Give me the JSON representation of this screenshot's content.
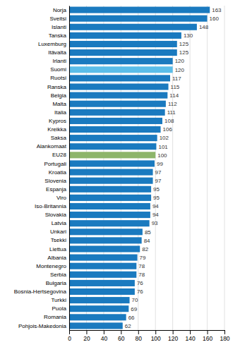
{
  "chart_data": {
    "type": "bar",
    "orientation": "horizontal",
    "categories": [
      "Norja",
      "Sveitsi",
      "Islanti",
      "Tanska",
      "Luxemburg",
      "Itävalta",
      "Irlanti",
      "Suomi",
      "Ruotsi",
      "Ranska",
      "Belgia",
      "Malta",
      "Italia",
      "Kypros",
      "Kreikka",
      "Saksa",
      "Alankomaat",
      "EU28",
      "Portugali",
      "Kroatia",
      "Slovenia",
      "Espanja",
      "Viro",
      "Iso-Britannia",
      "Slovakia",
      "Latvia",
      "Unkari",
      "Tsekki",
      "Liettua",
      "Albania",
      "Montenegro",
      "Serbia",
      "Bulgaria",
      "Bosnia-Hertsegovina",
      "Turkki",
      "Puola",
      "Romania",
      "Pohjois-Makedonia"
    ],
    "values": [
      163,
      160,
      148,
      130,
      125,
      125,
      120,
      120,
      117,
      115,
      114,
      112,
      111,
      108,
      106,
      102,
      101,
      100,
      99,
      97,
      97,
      95,
      95,
      94,
      94,
      93,
      85,
      84,
      82,
      79,
      78,
      78,
      76,
      76,
      70,
      69,
      66,
      62
    ],
    "colors": [
      "#1a7abf",
      "#1a7abf",
      "#1a7abf",
      "#1a7abf",
      "#1a7abf",
      "#1a7abf",
      "#1a7abf",
      "#5bbde8",
      "#1a7abf",
      "#1a7abf",
      "#1a7abf",
      "#1a7abf",
      "#1a7abf",
      "#1a7abf",
      "#1a7abf",
      "#1a7abf",
      "#1a7abf",
      "#8db56a",
      "#1a7abf",
      "#1a7abf",
      "#1a7abf",
      "#1a7abf",
      "#1a7abf",
      "#1a7abf",
      "#1a7abf",
      "#1a7abf",
      "#1a7abf",
      "#1a7abf",
      "#1a7abf",
      "#1a7abf",
      "#1a7abf",
      "#1a7abf",
      "#1a7abf",
      "#1a7abf",
      "#1a7abf",
      "#1a7abf",
      "#1a7abf",
      "#1a7abf"
    ],
    "xlim": [
      0,
      180
    ],
    "xticks": [
      0,
      20,
      40,
      60,
      80,
      100,
      120,
      140,
      160,
      180
    ],
    "grid": true,
    "data_labels": true
  }
}
